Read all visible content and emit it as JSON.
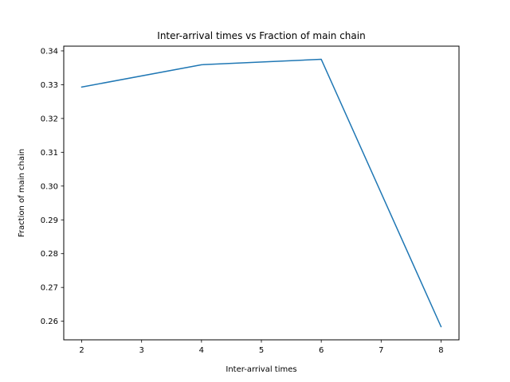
{
  "chart_data": {
    "type": "line",
    "title": "Inter-arrival times vs Fraction of main chain",
    "xlabel": "Inter-arrival times",
    "ylabel": "Fraction of main chain",
    "x": [
      2,
      4,
      6,
      8
    ],
    "series": [
      {
        "values": [
          0.3293,
          0.3359,
          0.3375,
          0.2584
        ],
        "color": "#1f77b4"
      }
    ],
    "xlim": [
      1.7,
      8.3
    ],
    "ylim": [
      0.2545,
      0.3414
    ],
    "xticks": [
      2,
      3,
      4,
      5,
      6,
      7,
      8
    ],
    "xtick_labels": [
      "2",
      "3",
      "4",
      "5",
      "6",
      "7",
      "8"
    ],
    "yticks": [
      0.26,
      0.27,
      0.28,
      0.29,
      0.3,
      0.31,
      0.32,
      0.33,
      0.34
    ],
    "ytick_labels": [
      "0.26",
      "0.27",
      "0.28",
      "0.29",
      "0.30",
      "0.31",
      "0.32",
      "0.33",
      "0.34"
    ],
    "grid": false,
    "legend": "none"
  }
}
